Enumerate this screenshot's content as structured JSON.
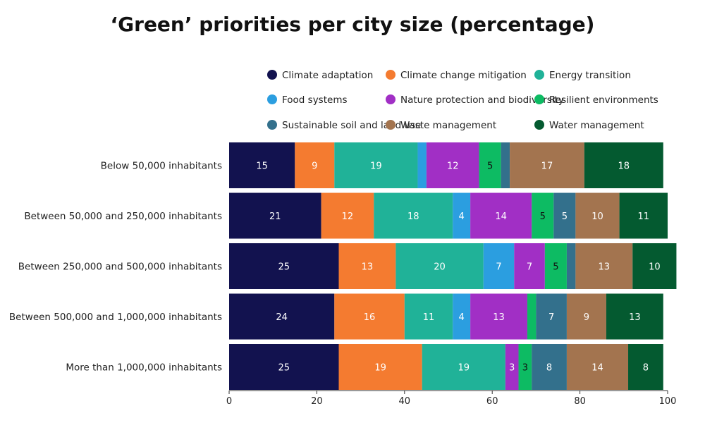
{
  "chart_data": {
    "type": "bar",
    "orientation": "horizontal",
    "stacked": true,
    "title": "‘Green’ priorities per city size (percentage)",
    "xlabel": "",
    "ylabel": "",
    "xlim": [
      0,
      100
    ],
    "xticks": [
      0,
      20,
      40,
      60,
      80,
      100
    ],
    "grid": false,
    "legend_position": "top",
    "categories": [
      "Below 50,000 inhabitants",
      "Between 50,000 and 250,000 inhabitants",
      "Between 250,000 and 500,000 inhabitants",
      "Between 500,000 and 1,000,000 inhabitants",
      "More than 1,000,000 inhabitants"
    ],
    "series": [
      {
        "name": "Climate adaptation",
        "color": "#12124f",
        "label_color": "#ffffff",
        "values": [
          15,
          21,
          25,
          24,
          25
        ]
      },
      {
        "name": "Climate change mitigation",
        "color": "#f47b30",
        "label_color": "#ffffff",
        "values": [
          9,
          12,
          13,
          16,
          19
        ]
      },
      {
        "name": "Energy transition",
        "color": "#20b298",
        "label_color": "#ffffff",
        "values": [
          19,
          18,
          20,
          11,
          19
        ]
      },
      {
        "name": "Food systems",
        "color": "#2b9ee0",
        "label_color": "#ffffff",
        "values": [
          2,
          4,
          7,
          4,
          0
        ]
      },
      {
        "name": "Nature protection and biodiversity",
        "color": "#a12fc5",
        "label_color": "#ffffff",
        "values": [
          12,
          14,
          7,
          13,
          3
        ]
      },
      {
        "name": "Resilient environments",
        "color": "#0dbb63",
        "label_color": "#111111",
        "values": [
          5,
          5,
          5,
          2,
          3
        ]
      },
      {
        "name": "Sustainable soil and land use",
        "color": "#33708c",
        "label_color": "#ffffff",
        "values": [
          2,
          5,
          2,
          7,
          8
        ]
      },
      {
        "name": "Waste management",
        "color": "#a3744f",
        "label_color": "#ffffff",
        "values": [
          17,
          10,
          13,
          9,
          14
        ]
      },
      {
        "name": "Water management",
        "color": "#045a30",
        "label_color": "#ffffff",
        "values": [
          18,
          11,
          10,
          13,
          8
        ]
      }
    ]
  }
}
